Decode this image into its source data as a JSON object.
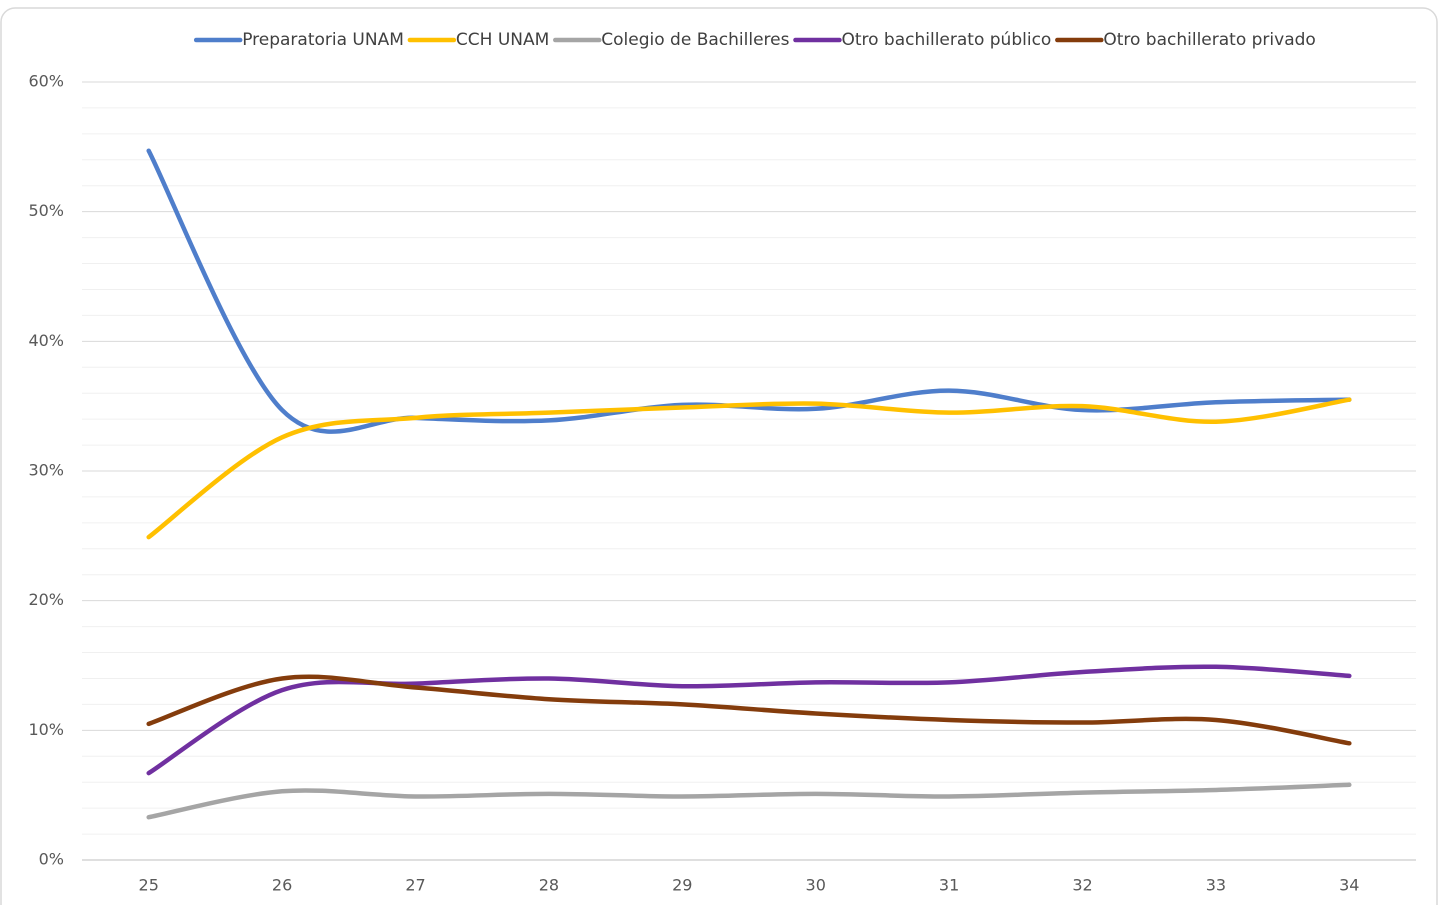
{
  "chart_data": {
    "type": "line",
    "categories": [
      "25",
      "26",
      "27",
      "28",
      "29",
      "30",
      "31",
      "32",
      "33",
      "34"
    ],
    "series": [
      {
        "name": "Preparatoria UNAM",
        "color": "#4f7ecb",
        "values": [
          54.7,
          34.7,
          34.1,
          33.9,
          35.1,
          34.8,
          36.2,
          34.7,
          35.3,
          35.5
        ]
      },
      {
        "name": "CCH UNAM",
        "color": "#ffc000",
        "values": [
          24.9,
          32.6,
          34.1,
          34.5,
          34.9,
          35.2,
          34.5,
          35.0,
          33.8,
          35.5
        ]
      },
      {
        "name": "Colegio de Bachilleres",
        "color": "#a5a5a5",
        "values": [
          3.3,
          5.3,
          4.9,
          5.1,
          4.9,
          5.1,
          4.9,
          5.2,
          5.4,
          5.8
        ]
      },
      {
        "name": "Otro bachillerato público",
        "color": "#7030a0",
        "values": [
          6.7,
          13.1,
          13.6,
          14.0,
          13.4,
          13.7,
          13.7,
          14.5,
          14.9,
          14.2
        ]
      },
      {
        "name": "Otro bachillerato privado",
        "color": "#843c0c",
        "values": [
          10.5,
          14.0,
          13.3,
          12.4,
          12.0,
          11.3,
          10.8,
          10.6,
          10.8,
          9.0
        ]
      }
    ],
    "ylim": [
      0,
      60
    ],
    "yticks": [
      {
        "value": 0,
        "label": "0%"
      },
      {
        "value": 10,
        "label": "10%"
      },
      {
        "value": 20,
        "label": "20%"
      },
      {
        "value": 30,
        "label": "30%"
      },
      {
        "value": 40,
        "label": "40%"
      },
      {
        "value": 50,
        "label": "50%"
      },
      {
        "value": 60,
        "label": "60%"
      }
    ],
    "minor_yticks": [
      2,
      4,
      6,
      8,
      12,
      14,
      16,
      18,
      22,
      24,
      26,
      28,
      32,
      34,
      36,
      38,
      42,
      44,
      46,
      48,
      52,
      54,
      56,
      58
    ],
    "grid": true,
    "smooth": true,
    "legend": "top"
  }
}
